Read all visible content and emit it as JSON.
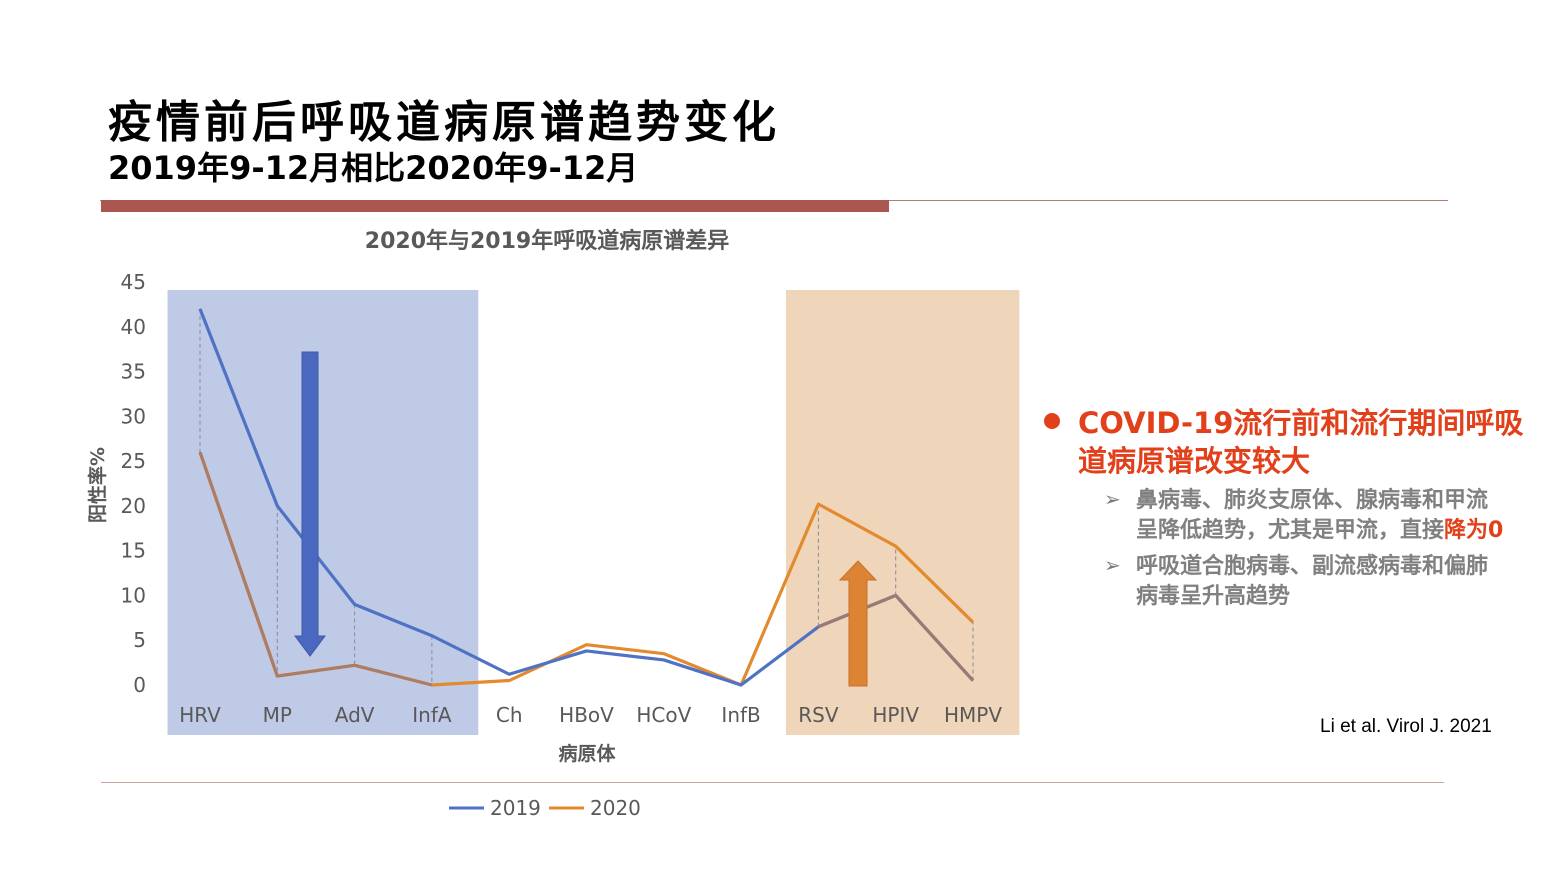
{
  "slide": {
    "title": "疫情前后呼吸道病原谱趋势变化",
    "subtitle": "2019年9-12月相比2020年9-12月",
    "citation": "Li et al. Virol J. 2021"
  },
  "callout": {
    "main": "COVID-19流行前和流行期间呼吸道病原谱改变较大",
    "items": [
      {
        "text": "鼻病毒、肺炎支原体、腺病毒和甲流呈降低趋势，尤其是甲流，直接",
        "highlight": "降为0"
      },
      {
        "text": "呼吸道合胞病毒、副流感病毒和偏肺病毒呈升高趋势",
        "highlight": ""
      }
    ]
  },
  "colors": {
    "series2019": "#4f72c4",
    "series2020": "#e38a2e",
    "overlap": "#a57a6a",
    "decrease_band": "#b8c4e4",
    "increase_band": "#eccfae",
    "decrease_arrow": "#4a68bf",
    "increase_arrow": "#dd8434",
    "accent": "#e2401b",
    "rule": "#a9574e"
  },
  "chart_data": {
    "type": "line",
    "title": "2020年与2019年呼吸道病原谱差异",
    "xlabel": "病原体",
    "ylabel": "阳性率%",
    "ylim": [
      0,
      45
    ],
    "yticks": [
      0,
      5,
      10,
      15,
      20,
      25,
      30,
      35,
      40,
      45
    ],
    "grid": false,
    "legend": "bottom",
    "categories": [
      "HRV",
      "MP",
      "AdV",
      "InfA",
      "Ch",
      "HBoV",
      "HCoV",
      "InfB",
      "RSV",
      "HPIV",
      "HMPV"
    ],
    "series": [
      {
        "name": "2019",
        "values": [
          42,
          20,
          9,
          5.5,
          1.2,
          3.8,
          2.8,
          0,
          6.5,
          10,
          0.5
        ]
      },
      {
        "name": "2020",
        "values": [
          26,
          1,
          2.2,
          0,
          0.5,
          4.5,
          3.5,
          0,
          20.2,
          15.5,
          7
        ]
      }
    ],
    "highlight_regions": [
      {
        "from": "HRV",
        "to": "InfA",
        "trend": "decrease"
      },
      {
        "from": "RSV",
        "to": "HMPV",
        "trend": "increase"
      }
    ]
  }
}
